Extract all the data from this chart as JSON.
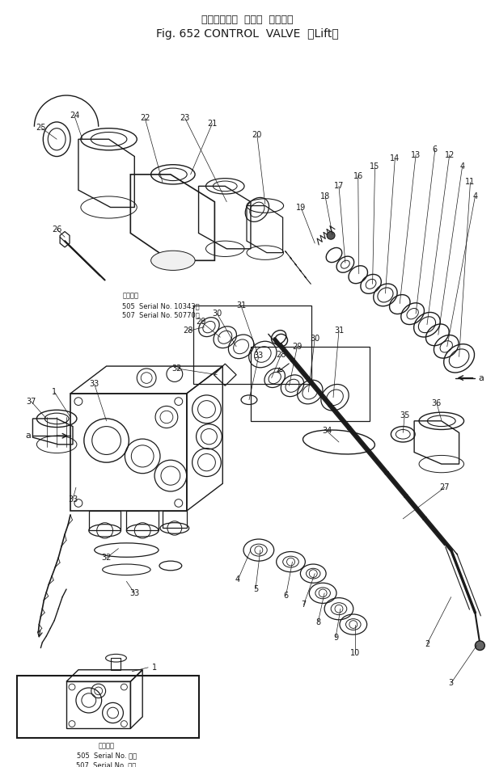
{
  "title_line1": "コントロール  バルブ  （リフト",
  "title_line2": "Fig. 652 CONTROL  VALVE  （Lift）",
  "bg_color": "#ffffff",
  "line_color": "#1a1a1a",
  "text_color": "#1a1a1a",
  "fig_width": 6.12,
  "fig_height": 9.49,
  "note1_line1": "適用号筑",
  "note1_line2": "505  Serial No. 10343〜",
  "note1_line3": "507  Serial No. 50770〜",
  "note2_line1": "適用号筑",
  "note2_line2": "505  Serial No. ・〜",
  "note2_line3": "507  Serial No. ・〜"
}
